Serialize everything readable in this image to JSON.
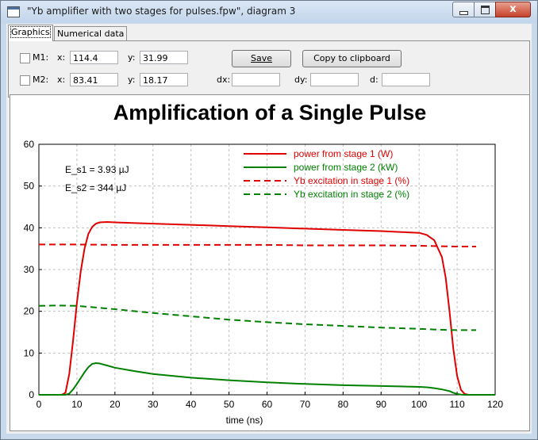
{
  "window": {
    "title": "\"Yb amplifier with two stages for pulses.fpw\", diagram 3",
    "close_symbol": "x"
  },
  "tabs": [
    {
      "label": "Graphics"
    },
    {
      "label": "Numerical data"
    }
  ],
  "controls": {
    "m1": {
      "label": "M1:",
      "x_label": "x:",
      "x_value": "114.4",
      "y_label": "y:",
      "y_value": "31.99"
    },
    "m2": {
      "label": "M2:",
      "x_label": "x:",
      "x_value": "83.41",
      "y_label": "y:",
      "y_value": "18.17"
    },
    "dx_label": "dx:",
    "dy_label": "dy:",
    "d_label": "d:",
    "save_label": "Save",
    "copy_label": "Copy to clipboard"
  },
  "colors": {
    "red": "#e00000",
    "green": "#008000"
  },
  "chart_data": {
    "type": "line",
    "title": "Amplification of a Single Pulse",
    "xlabel": "time (ns)",
    "ylabel": "",
    "xlim": [
      0,
      120
    ],
    "ylim": [
      0,
      60
    ],
    "xticks": [
      0,
      10,
      20,
      30,
      40,
      50,
      60,
      70,
      80,
      90,
      100,
      110,
      120
    ],
    "yticks": [
      0,
      10,
      20,
      30,
      40,
      50,
      60
    ],
    "grid": true,
    "legend_position": "top-right",
    "annotations": [
      "E_s1 = 3.93 µJ",
      "E_s2 = 344 µJ"
    ],
    "series": [
      {
        "name": "power from stage 1 (W)",
        "color": "#e00000",
        "dash": false,
        "x": [
          0,
          6,
          7,
          8,
          9,
          10,
          11,
          12,
          13,
          14,
          15,
          16,
          18,
          20,
          30,
          40,
          50,
          60,
          70,
          80,
          90,
          100,
          102,
          104,
          106,
          107,
          108,
          109,
          110,
          111,
          112,
          113,
          120
        ],
        "y": [
          0,
          0,
          0.5,
          5,
          13,
          22,
          29.5,
          35,
          38.5,
          40.2,
          41,
          41.3,
          41.4,
          41.3,
          41.0,
          40.7,
          40.4,
          40.1,
          39.8,
          39.5,
          39.2,
          38.8,
          38.3,
          37,
          33,
          28,
          20,
          11,
          4.5,
          1.2,
          0.2,
          0,
          0
        ]
      },
      {
        "name": "power from stage 2 (kW)",
        "color": "#008000",
        "dash": false,
        "x": [
          0,
          7,
          8,
          9,
          10,
          11,
          12,
          13,
          14,
          15,
          16,
          18,
          20,
          25,
          30,
          40,
          50,
          60,
          70,
          80,
          90,
          100,
          102,
          104,
          106,
          108,
          109,
          110,
          111,
          112,
          120
        ],
        "y": [
          0,
          0,
          0.3,
          1.3,
          2.6,
          4,
          5.4,
          6.6,
          7.4,
          7.6,
          7.5,
          7.0,
          6.5,
          5.7,
          5.0,
          4.1,
          3.5,
          3.0,
          2.6,
          2.3,
          2.1,
          1.9,
          1.8,
          1.6,
          1.3,
          0.9,
          0.5,
          0.2,
          0.05,
          0,
          0
        ]
      },
      {
        "name": "Yb excitation in stage 1 (%)",
        "color": "#e00000",
        "dash": true,
        "x": [
          0,
          10,
          20,
          30,
          40,
          50,
          60,
          70,
          80,
          90,
          100,
          105,
          110,
          115
        ],
        "y": [
          36,
          36,
          35.9,
          35.9,
          35.9,
          35.9,
          35.9,
          35.8,
          35.8,
          35.8,
          35.7,
          35.6,
          35.5,
          35.5
        ]
      },
      {
        "name": "Yb excitation in stage 2 (%)",
        "color": "#008000",
        "dash": true,
        "x": [
          0,
          5,
          10,
          15,
          20,
          30,
          40,
          50,
          60,
          70,
          80,
          90,
          100,
          105,
          110,
          115
        ],
        "y": [
          21.3,
          21.4,
          21.3,
          20.9,
          20.5,
          19.6,
          18.8,
          18.0,
          17.4,
          16.9,
          16.5,
          16.1,
          15.8,
          15.6,
          15.5,
          15.5
        ]
      }
    ]
  }
}
